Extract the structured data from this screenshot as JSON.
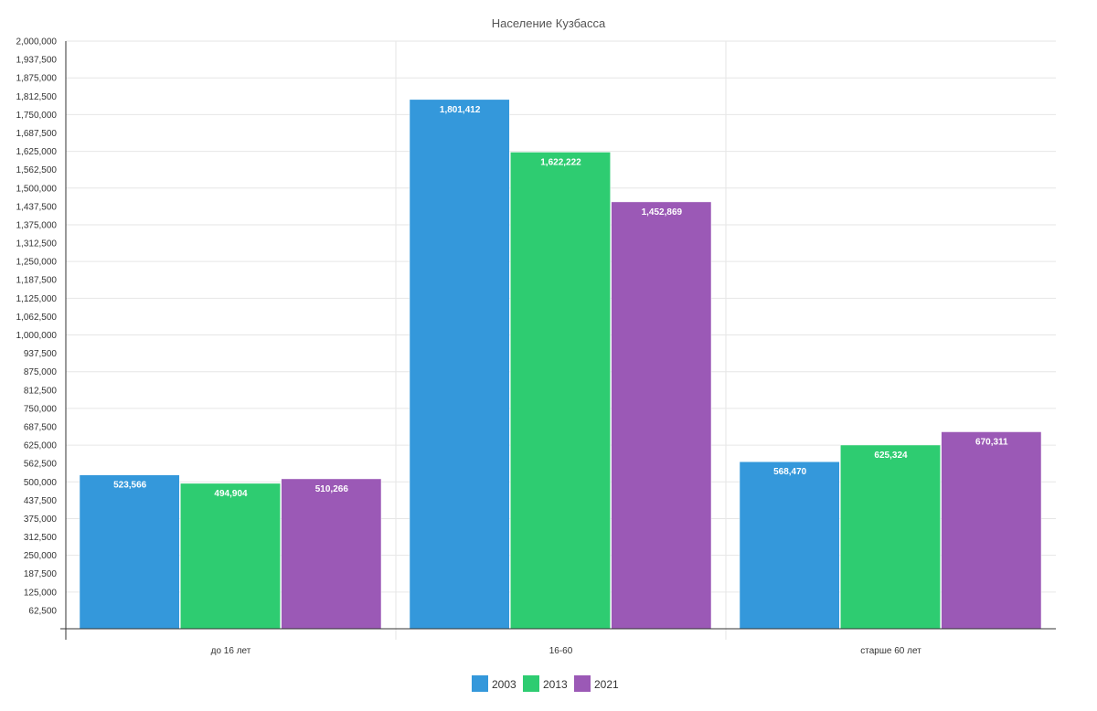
{
  "chart_data": {
    "type": "bar",
    "title": "Население Кузбасса",
    "xlabel": "",
    "ylabel": "",
    "categories": [
      "до 16 лет",
      "16-60",
      "старше 60 лет"
    ],
    "series": [
      {
        "name": "2003",
        "color": "#3498db",
        "values": [
          523566,
          1801412,
          568470
        ],
        "labels": [
          "523,566",
          "1,801,412",
          "568,470"
        ]
      },
      {
        "name": "2013",
        "color": "#2ecc71",
        "values": [
          494904,
          1622222,
          625324
        ],
        "labels": [
          "494,904",
          "1,622,222",
          "625,324"
        ]
      },
      {
        "name": "2021",
        "color": "#9b59b6",
        "values": [
          510266,
          1452869,
          670311
        ],
        "labels": [
          "510,266",
          "1,452,869",
          "670,311"
        ]
      }
    ],
    "ylim": [
      0,
      2000000
    ],
    "yticks": [
      62500,
      125000,
      187500,
      250000,
      312500,
      375000,
      437500,
      500000,
      562500,
      625000,
      687500,
      750000,
      812500,
      875000,
      937500,
      1000000,
      1062500,
      1125000,
      1187500,
      1250000,
      1312500,
      1375000,
      1437500,
      1500000,
      1562500,
      1625000,
      1687500,
      1750000,
      1812500,
      1875000,
      1937500,
      2000000
    ],
    "ytick_labels": [
      "62,500",
      "125,000",
      "187,500",
      "250,000",
      "312,500",
      "375,000",
      "437,500",
      "500,000",
      "562,500",
      "625,000",
      "687,500",
      "750,000",
      "812,500",
      "875,000",
      "937,500",
      "1,000,000",
      "1,062,500",
      "1,125,000",
      "1,187,500",
      "1,250,000",
      "1,312,500",
      "1,375,000",
      "1,437,500",
      "1,500,000",
      "1,562,500",
      "1,625,000",
      "1,687,500",
      "1,750,000",
      "1,812,500",
      "1,875,000",
      "1,937,500",
      "2,000,000"
    ],
    "grid": true,
    "legend_position": "bottom-center"
  }
}
